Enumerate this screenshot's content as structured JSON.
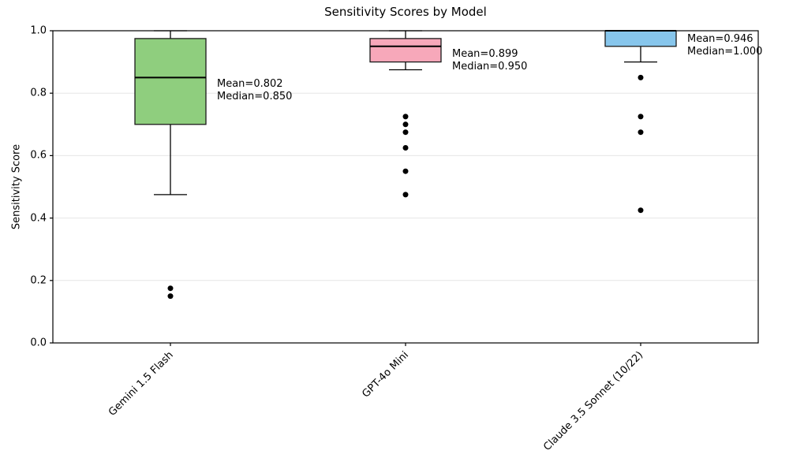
{
  "chart_data": {
    "type": "box",
    "title": "Sensitivity Scores by Model",
    "xlabel": "",
    "ylabel": "Sensitivity Score",
    "ylim": [
      0.0,
      1.0
    ],
    "yticks": [
      0.0,
      0.2,
      0.4,
      0.6,
      0.8,
      1.0
    ],
    "grid": "horizontal-light",
    "legend": "none",
    "categories": [
      "Gemini 1.5 Flash",
      "GPT-4o Mini",
      "Claude 3.5 Sonnet (10/22)"
    ],
    "series": [
      {
        "name": "Gemini 1.5 Flash",
        "box_color": "#8fce7e",
        "q1": 0.7,
        "median": 0.85,
        "q3": 0.975,
        "whisker_low": 0.475,
        "whisker_high": 1.0,
        "outliers": [
          0.175,
          0.15
        ],
        "mean": 0.802,
        "annotation_lines": [
          "Mean=0.802",
          "Median=0.850"
        ]
      },
      {
        "name": "GPT-4o Mini",
        "box_color": "#f7a8ba",
        "q1": 0.9,
        "median": 0.95,
        "q3": 0.975,
        "whisker_low": 0.875,
        "whisker_high": 1.0,
        "outliers": [
          0.725,
          0.7,
          0.675,
          0.625,
          0.55,
          0.475
        ],
        "mean": 0.899,
        "annotation_lines": [
          "Mean=0.899",
          "Median=0.950"
        ]
      },
      {
        "name": "Claude 3.5 Sonnet (10/22)",
        "box_color": "#87c6ec",
        "q1": 0.95,
        "median": 1.0,
        "q3": 1.0,
        "whisker_low": 0.9,
        "whisker_high": 1.0,
        "outliers": [
          0.85,
          0.725,
          0.675,
          0.425
        ],
        "mean": 0.946,
        "annotation_lines": [
          "Mean=0.946",
          "Median=1.000"
        ]
      }
    ],
    "colors": {
      "box_edge": "#1a1a1a",
      "median_line": "#000000",
      "whisker": "#000000",
      "outlier_dot": "#000000",
      "gridline": "#e6e6e6",
      "axes_frame": "#000000",
      "text": "#000000"
    }
  }
}
